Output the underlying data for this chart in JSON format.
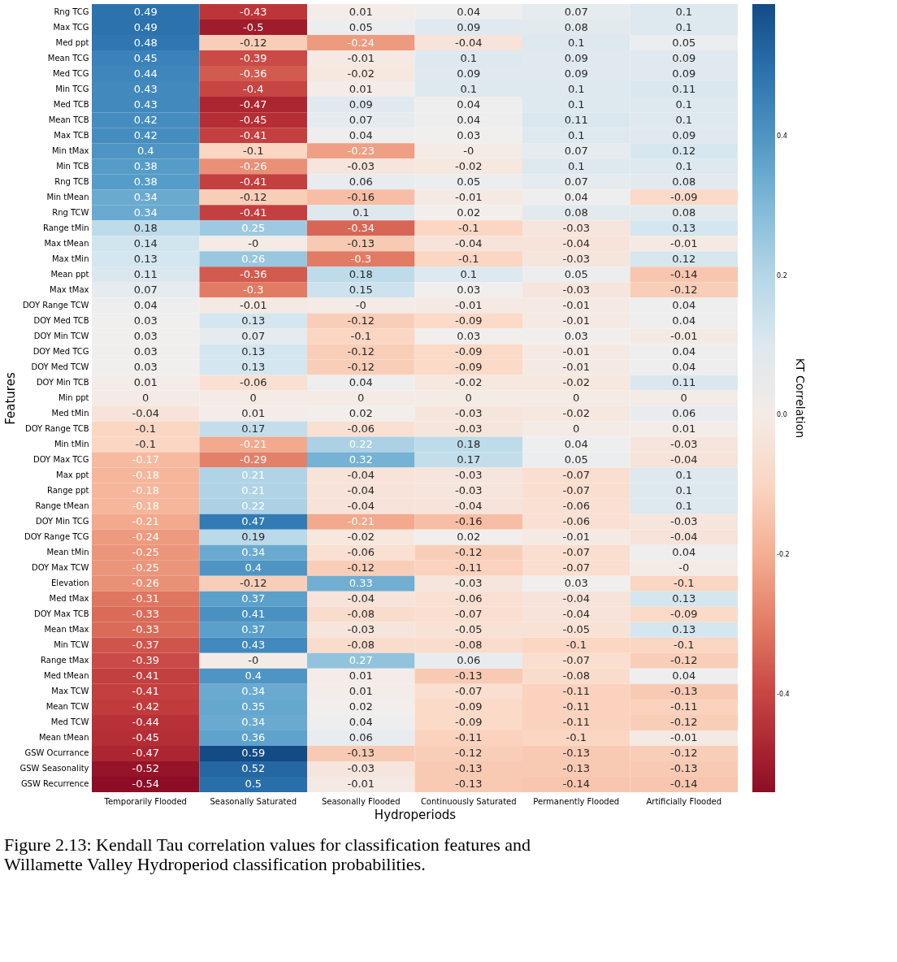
{
  "chart_data": {
    "type": "heatmap",
    "xlabel": "Hydroperiods",
    "ylabel": "Features",
    "clabel": "KT Correlation",
    "annotations": [
      "Figure 2.13:  Kendall Tau correlation values for classification features and Willamette Valley Hydroperiod classification probabilities."
    ],
    "categories": [
      "Temporarily Flooded",
      "Seasonally Saturated",
      "Seasonally Flooded",
      "Continuously Saturated",
      "Permanently Flooded",
      "Artificially Flooded"
    ],
    "y_categories": [
      "Rng TCG",
      "Max TCG",
      "Med ppt",
      "Mean TCG",
      "Med TCG",
      "Min TCG",
      "Med TCB",
      "Mean TCB",
      "Max TCB",
      "Min tMax",
      "Min TCB",
      "Rng TCB",
      "Min tMean",
      "Rng TCW",
      "Range tMin",
      "Max tMean",
      "Max tMin",
      "Mean ppt",
      "Max tMax",
      "DOY Range TCW",
      "DOY Med TCB",
      "DOY Min TCW",
      "DOY Med TCG",
      "DOY Med TCW",
      "DOY Min TCB",
      "Min ppt",
      "Med tMin",
      "DOY Range TCB",
      "Min tMin",
      "DOY Max TCG",
      "Max ppt",
      "Range ppt",
      "Range tMean",
      "DOY Min TCG",
      "DOY Range TCG",
      "Mean tMin",
      "DOY Max TCW",
      "Elevation",
      "Med tMax",
      "DOY Max TCB",
      "Mean tMax",
      "Min TCW",
      "Range tMax",
      "Med tMean",
      "Max TCW",
      "Mean TCW",
      "Med TCW",
      "Mean tMean",
      "GSW Ocurrance",
      "GSW Seasonality",
      "GSW Recurrence"
    ],
    "cells": [
      [
        0.49,
        -0.43,
        0.01,
        0.04,
        0.07,
        0.1
      ],
      [
        0.49,
        -0.5,
        0.05,
        0.09,
        0.08,
        0.1
      ],
      [
        0.48,
        -0.12,
        -0.24,
        -0.04,
        0.1,
        0.05
      ],
      [
        0.45,
        -0.39,
        -0.01,
        0.1,
        0.09,
        0.09
      ],
      [
        0.44,
        -0.36,
        -0.02,
        0.09,
        0.09,
        0.09
      ],
      [
        0.43,
        -0.4,
        0.01,
        0.1,
        0.1,
        0.11
      ],
      [
        0.43,
        -0.47,
        0.09,
        0.04,
        0.1,
        0.1
      ],
      [
        0.42,
        -0.45,
        0.07,
        0.04,
        0.11,
        0.1
      ],
      [
        0.42,
        -0.41,
        0.04,
        0.03,
        0.1,
        0.09
      ],
      [
        0.4,
        -0.1,
        -0.23,
        0,
        0.07,
        0.12
      ],
      [
        0.38,
        -0.26,
        -0.03,
        -0.02,
        0.1,
        0.1
      ],
      [
        0.38,
        -0.41,
        0.06,
        0.05,
        0.07,
        0.08
      ],
      [
        0.34,
        -0.12,
        -0.16,
        -0.01,
        0.04,
        -0.09
      ],
      [
        0.34,
        -0.41,
        0.1,
        0.02,
        0.08,
        0.08
      ],
      [
        0.18,
        0.25,
        -0.34,
        -0.1,
        -0.03,
        0.13
      ],
      [
        0.14,
        0,
        -0.13,
        -0.04,
        -0.04,
        -0.01
      ],
      [
        0.13,
        0.26,
        -0.3,
        -0.1,
        -0.03,
        0.12
      ],
      [
        0.11,
        -0.36,
        0.18,
        0.1,
        0.05,
        -0.14
      ],
      [
        0.07,
        -0.3,
        0.15,
        0.03,
        -0.03,
        -0.12
      ],
      [
        0.04,
        -0.01,
        0,
        -0.01,
        -0.01,
        0.04
      ],
      [
        0.03,
        0.13,
        -0.12,
        -0.09,
        -0.01,
        0.04
      ],
      [
        0.03,
        0.07,
        -0.1,
        0.03,
        0.03,
        -0.01
      ],
      [
        0.03,
        0.13,
        -0.12,
        -0.09,
        -0.01,
        0.04
      ],
      [
        0.03,
        0.13,
        -0.12,
        -0.09,
        -0.01,
        0.04
      ],
      [
        0.01,
        -0.06,
        0.04,
        -0.02,
        -0.02,
        0.11
      ],
      [
        0,
        0,
        0,
        0,
        0,
        0
      ],
      [
        -0.04,
        0.01,
        0.02,
        -0.03,
        -0.02,
        0.06
      ],
      [
        -0.1,
        0.17,
        -0.06,
        -0.03,
        0,
        0.01
      ],
      [
        -0.1,
        -0.21,
        0.22,
        0.18,
        0.04,
        -0.03
      ],
      [
        -0.17,
        -0.29,
        0.32,
        0.17,
        0.05,
        -0.04
      ],
      [
        -0.18,
        0.21,
        -0.04,
        -0.03,
        -0.07,
        0.1
      ],
      [
        -0.18,
        0.21,
        -0.04,
        -0.03,
        -0.07,
        0.1
      ],
      [
        -0.18,
        0.22,
        -0.04,
        -0.04,
        -0.06,
        0.1
      ],
      [
        -0.21,
        0.47,
        -0.21,
        -0.16,
        -0.06,
        -0.03
      ],
      [
        -0.24,
        0.19,
        -0.02,
        0.02,
        -0.01,
        -0.04
      ],
      [
        -0.25,
        0.34,
        -0.06,
        -0.12,
        -0.07,
        0.04
      ],
      [
        -0.25,
        0.4,
        -0.12,
        -0.11,
        -0.07,
        0
      ],
      [
        -0.26,
        -0.12,
        0.33,
        -0.03,
        0.03,
        -0.1
      ],
      [
        -0.31,
        0.37,
        -0.04,
        -0.06,
        -0.04,
        0.13
      ],
      [
        -0.33,
        0.41,
        -0.08,
        -0.07,
        -0.04,
        -0.09
      ],
      [
        -0.33,
        0.37,
        -0.03,
        -0.05,
        -0.05,
        0.13
      ],
      [
        -0.37,
        0.43,
        -0.08,
        -0.08,
        -0.1,
        -0.1
      ],
      [
        -0.39,
        0,
        0.27,
        0.06,
        -0.07,
        -0.12
      ],
      [
        -0.41,
        0.4,
        0.01,
        -0.13,
        -0.08,
        0.04
      ],
      [
        -0.41,
        0.34,
        0.01,
        -0.07,
        -0.11,
        -0.13
      ],
      [
        -0.42,
        0.35,
        0.02,
        -0.09,
        -0.11,
        -0.11
      ],
      [
        -0.44,
        0.34,
        0.04,
        -0.09,
        -0.11,
        -0.12
      ],
      [
        -0.45,
        0.36,
        0.06,
        -0.11,
        -0.1,
        -0.01
      ],
      [
        -0.47,
        0.59,
        -0.13,
        -0.12,
        -0.13,
        -0.12
      ],
      [
        -0.52,
        0.52,
        -0.03,
        -0.13,
        -0.13,
        -0.13
      ],
      [
        -0.54,
        0.5,
        -0.01,
        -0.13,
        -0.14,
        -0.14
      ]
    ],
    "cell_labels": [
      [
        "0.49",
        "-0.43",
        "0.01",
        "0.04",
        "0.07",
        "0.1"
      ],
      [
        "0.49",
        "-0.5",
        "0.05",
        "0.09",
        "0.08",
        "0.1"
      ],
      [
        "0.48",
        "-0.12",
        "-0.24",
        "-0.04",
        "0.1",
        "0.05"
      ],
      [
        "0.45",
        "-0.39",
        "-0.01",
        "0.1",
        "0.09",
        "0.09"
      ],
      [
        "0.44",
        "-0.36",
        "-0.02",
        "0.09",
        "0.09",
        "0.09"
      ],
      [
        "0.43",
        "-0.4",
        "0.01",
        "0.1",
        "0.1",
        "0.11"
      ],
      [
        "0.43",
        "-0.47",
        "0.09",
        "0.04",
        "0.1",
        "0.1"
      ],
      [
        "0.42",
        "-0.45",
        "0.07",
        "0.04",
        "0.11",
        "0.1"
      ],
      [
        "0.42",
        "-0.41",
        "0.04",
        "0.03",
        "0.1",
        "0.09"
      ],
      [
        "0.4",
        "-0.1",
        "-0.23",
        "-0",
        "0.07",
        "0.12"
      ],
      [
        "0.38",
        "-0.26",
        "-0.03",
        "-0.02",
        "0.1",
        "0.1"
      ],
      [
        "0.38",
        "-0.41",
        "0.06",
        "0.05",
        "0.07",
        "0.08"
      ],
      [
        "0.34",
        "-0.12",
        "-0.16",
        "-0.01",
        "0.04",
        "-0.09"
      ],
      [
        "0.34",
        "-0.41",
        "0.1",
        "0.02",
        "0.08",
        "0.08"
      ],
      [
        "0.18",
        "0.25",
        "-0.34",
        "-0.1",
        "-0.03",
        "0.13"
      ],
      [
        "0.14",
        "-0",
        "-0.13",
        "-0.04",
        "-0.04",
        "-0.01"
      ],
      [
        "0.13",
        "0.26",
        "-0.3",
        "-0.1",
        "-0.03",
        "0.12"
      ],
      [
        "0.11",
        "-0.36",
        "0.18",
        "0.1",
        "0.05",
        "-0.14"
      ],
      [
        "0.07",
        "-0.3",
        "0.15",
        "0.03",
        "-0.03",
        "-0.12"
      ],
      [
        "0.04",
        "-0.01",
        "-0",
        "-0.01",
        "-0.01",
        "0.04"
      ],
      [
        "0.03",
        "0.13",
        "-0.12",
        "-0.09",
        "-0.01",
        "0.04"
      ],
      [
        "0.03",
        "0.07",
        "-0.1",
        "0.03",
        "0.03",
        "-0.01"
      ],
      [
        "0.03",
        "0.13",
        "-0.12",
        "-0.09",
        "-0.01",
        "0.04"
      ],
      [
        "0.03",
        "0.13",
        "-0.12",
        "-0.09",
        "-0.01",
        "0.04"
      ],
      [
        "0.01",
        "-0.06",
        "0.04",
        "-0.02",
        "-0.02",
        "0.11"
      ],
      [
        "0",
        "0",
        "0",
        "0",
        "0",
        "0"
      ],
      [
        "-0.04",
        "0.01",
        "0.02",
        "-0.03",
        "-0.02",
        "0.06"
      ],
      [
        "-0.1",
        "0.17",
        "-0.06",
        "-0.03",
        "0",
        "0.01"
      ],
      [
        "-0.1",
        "-0.21",
        "0.22",
        "0.18",
        "0.04",
        "-0.03"
      ],
      [
        "-0.17",
        "-0.29",
        "0.32",
        "0.17",
        "0.05",
        "-0.04"
      ],
      [
        "-0.18",
        "0.21",
        "-0.04",
        "-0.03",
        "-0.07",
        "0.1"
      ],
      [
        "-0.18",
        "0.21",
        "-0.04",
        "-0.03",
        "-0.07",
        "0.1"
      ],
      [
        "-0.18",
        "0.22",
        "-0.04",
        "-0.04",
        "-0.06",
        "0.1"
      ],
      [
        "-0.21",
        "0.47",
        "-0.21",
        "-0.16",
        "-0.06",
        "-0.03"
      ],
      [
        "-0.24",
        "0.19",
        "-0.02",
        "0.02",
        "-0.01",
        "-0.04"
      ],
      [
        "-0.25",
        "0.34",
        "-0.06",
        "-0.12",
        "-0.07",
        "0.04"
      ],
      [
        "-0.25",
        "0.4",
        "-0.12",
        "-0.11",
        "-0.07",
        "-0"
      ],
      [
        "-0.26",
        "-0.12",
        "0.33",
        "-0.03",
        "0.03",
        "-0.1"
      ],
      [
        "-0.31",
        "0.37",
        "-0.04",
        "-0.06",
        "-0.04",
        "0.13"
      ],
      [
        "-0.33",
        "0.41",
        "-0.08",
        "-0.07",
        "-0.04",
        "-0.09"
      ],
      [
        "-0.33",
        "0.37",
        "-0.03",
        "-0.05",
        "-0.05",
        "0.13"
      ],
      [
        "-0.37",
        "0.43",
        "-0.08",
        "-0.08",
        "-0.1",
        "-0.1"
      ],
      [
        "-0.39",
        "-0",
        "0.27",
        "0.06",
        "-0.07",
        "-0.12"
      ],
      [
        "-0.41",
        "0.4",
        "0.01",
        "-0.13",
        "-0.08",
        "0.04"
      ],
      [
        "-0.41",
        "0.34",
        "0.01",
        "-0.07",
        "-0.11",
        "-0.13"
      ],
      [
        "-0.42",
        "0.35",
        "0.02",
        "-0.09",
        "-0.11",
        "-0.11"
      ],
      [
        "-0.44",
        "0.34",
        "0.04",
        "-0.09",
        "-0.11",
        "-0.12"
      ],
      [
        "-0.45",
        "0.36",
        "0.06",
        "-0.11",
        "-0.1",
        "-0.01"
      ],
      [
        "-0.47",
        "0.59",
        "-0.13",
        "-0.12",
        "-0.13",
        "-0.12"
      ],
      [
        "-0.52",
        "0.52",
        "-0.03",
        "-0.13",
        "-0.13",
        "-0.13"
      ],
      [
        "-0.54",
        "0.5",
        "-0.01",
        "-0.13",
        "-0.14",
        "-0.14"
      ]
    ],
    "clim": [
      -0.54,
      0.59
    ],
    "cticks": [
      {
        "value": 0.4,
        "label": "0.4"
      },
      {
        "value": 0.2,
        "label": "0.2"
      },
      {
        "value": 0,
        "label": "0.0"
      },
      {
        "value": -0.2,
        "label": "-0.2"
      },
      {
        "value": -0.4,
        "label": "-0.4"
      }
    ]
  }
}
